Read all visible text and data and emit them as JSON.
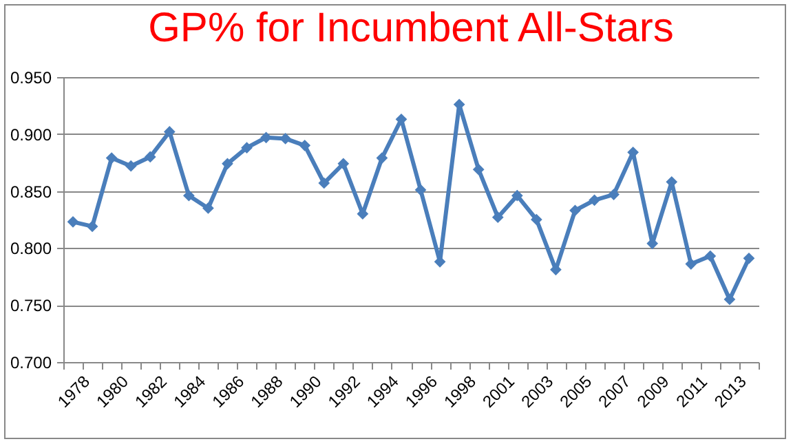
{
  "chart_data": {
    "type": "line",
    "title": "GP% for Incumbent All-Stars",
    "categories": [
      "1978",
      null,
      "1980",
      null,
      "1982",
      null,
      "1984",
      null,
      "1986",
      null,
      "1988",
      null,
      "1990",
      null,
      "1992",
      null,
      "1994",
      null,
      "1996",
      null,
      "1998",
      null,
      "2001",
      null,
      "2003",
      null,
      "2005",
      null,
      "2007",
      null,
      "2009",
      null,
      "2011",
      null,
      "2013",
      null
    ],
    "series": [
      {
        "color": "#4a7ebb",
        "values": [
          0.823,
          0.819,
          0.879,
          0.872,
          0.88,
          0.902,
          0.846,
          0.835,
          0.874,
          0.888,
          0.897,
          0.896,
          0.89,
          0.857,
          0.874,
          0.83,
          0.879,
          0.913,
          0.851,
          0.788,
          0.926,
          0.869,
          0.827,
          0.846,
          0.825,
          0.781,
          0.833,
          0.842,
          0.847,
          0.884,
          0.804,
          0.858,
          0.786,
          0.793,
          0.755,
          0.791
        ]
      }
    ],
    "ylim": [
      0.7,
      0.95
    ],
    "yticks": [
      {
        "value": 0.7,
        "label": "0.700"
      },
      {
        "value": 0.75,
        "label": "0.750"
      },
      {
        "value": 0.8,
        "label": "0.800"
      },
      {
        "value": 0.85,
        "label": "0.850"
      },
      {
        "value": 0.9,
        "label": "0.900"
      },
      {
        "value": 0.95,
        "label": "0.950"
      }
    ],
    "grid": "y",
    "marker": "diamond",
    "line_style": "solid"
  }
}
